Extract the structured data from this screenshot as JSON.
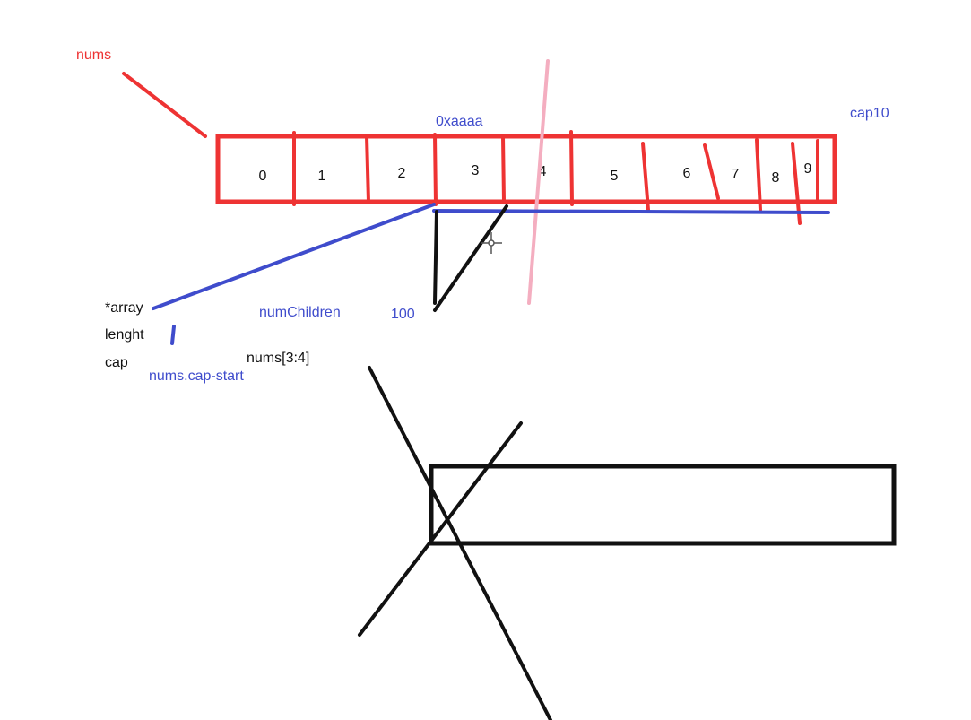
{
  "colors": {
    "red": "#ee3333",
    "blue": "#3f4ccc",
    "black": "#111111",
    "pink": "#f4aec0"
  },
  "labels": {
    "nums": "nums",
    "address": "0xaaaa",
    "cap10": "cap10",
    "array_field": "*array",
    "length_field": "lenght",
    "cap_field": "cap",
    "num_children": "numChildren",
    "hundred": "100",
    "slice_expr": "nums[3:4]",
    "cap_start": "nums.cap-start"
  },
  "array": {
    "cells": [
      "0",
      "1",
      "2",
      "3",
      "4",
      "5",
      "6",
      "7",
      "8",
      "9"
    ]
  }
}
